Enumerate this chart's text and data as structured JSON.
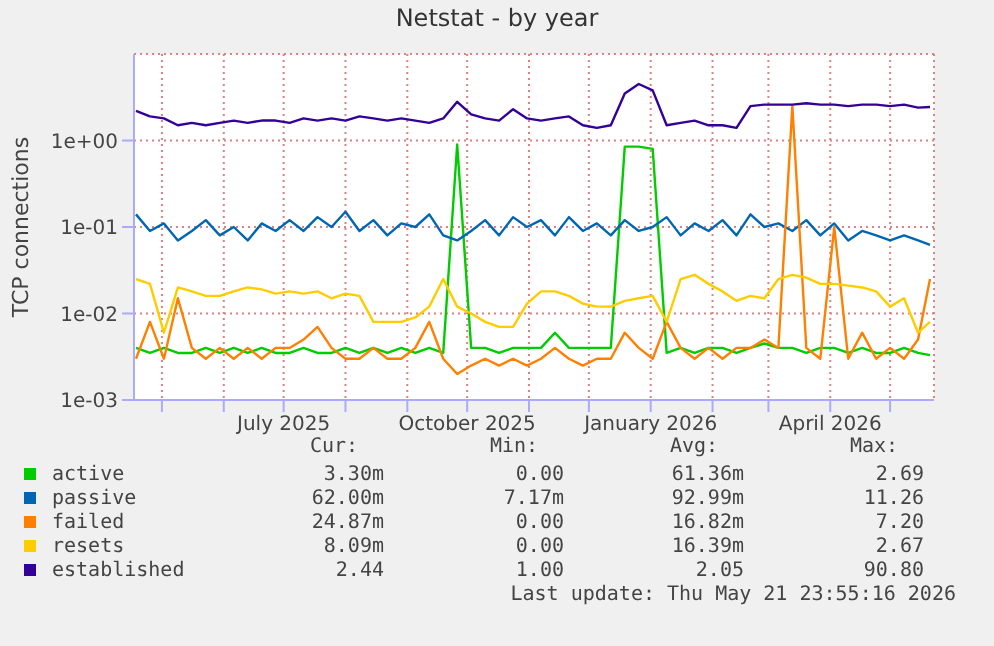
{
  "chart_data": {
    "type": "line",
    "title": "Netstat - by year",
    "ylabel": "TCP connections",
    "log": "y",
    "grid": true,
    "legend": "bottom",
    "marker": "none",
    "line_style": "solid",
    "x": [
      "2025-04-18",
      "2025-04-25",
      "2025-05-02",
      "2025-05-09",
      "2025-05-16",
      "2025-05-23",
      "2025-05-30",
      "2025-06-06",
      "2025-06-13",
      "2025-06-20",
      "2025-06-27",
      "2025-07-04",
      "2025-07-11",
      "2025-07-18",
      "2025-07-25",
      "2025-08-01",
      "2025-08-08",
      "2025-08-15",
      "2025-08-22",
      "2025-08-29",
      "2025-09-05",
      "2025-09-12",
      "2025-09-19",
      "2025-09-26",
      "2025-10-03",
      "2025-10-10",
      "2025-10-17",
      "2025-10-24",
      "2025-10-31",
      "2025-11-07",
      "2025-11-14",
      "2025-11-21",
      "2025-11-28",
      "2025-12-05",
      "2025-12-12",
      "2025-12-19",
      "2025-12-26",
      "2026-01-02",
      "2026-01-09",
      "2026-01-16",
      "2026-01-23",
      "2026-01-30",
      "2026-02-06",
      "2026-02-13",
      "2026-02-20",
      "2026-02-27",
      "2026-03-06",
      "2026-03-13",
      "2026-03-20",
      "2026-03-27",
      "2026-04-03",
      "2026-04-10",
      "2026-04-17",
      "2026-04-24",
      "2026-05-01",
      "2026-05-08",
      "2026-05-15",
      "2026-05-21"
    ],
    "xlim": [
      "2025-04-17",
      "2026-05-23"
    ],
    "xticks": [
      {
        "value": "2025-05-01",
        "label": null
      },
      {
        "value": "2025-06-01",
        "label": null
      },
      {
        "value": "2025-07-01",
        "label": "July 2025"
      },
      {
        "value": "2025-08-01",
        "label": null
      },
      {
        "value": "2025-09-01",
        "label": null
      },
      {
        "value": "2025-10-01",
        "label": "October 2025"
      },
      {
        "value": "2025-11-01",
        "label": null
      },
      {
        "value": "2025-12-01",
        "label": null
      },
      {
        "value": "2026-01-01",
        "label": "January 2026"
      },
      {
        "value": "2026-02-01",
        "label": null
      },
      {
        "value": "2026-03-01",
        "label": null
      },
      {
        "value": "2026-04-01",
        "label": "April 2026"
      },
      {
        "value": "2026-05-01",
        "label": null
      }
    ],
    "ylim": [
      0.001,
      10
    ],
    "yticks": [
      {
        "value": 0.001,
        "label": "1e-03"
      },
      {
        "value": 0.01,
        "label": "1e-02"
      },
      {
        "value": 0.1,
        "label": "1e-01"
      },
      {
        "value": 1,
        "label": "1e+00"
      }
    ],
    "series": [
      {
        "name": "active",
        "color": "#00cc00",
        "values": [
          0.004,
          0.0035,
          0.004,
          0.0035,
          0.0035,
          0.004,
          0.0035,
          0.004,
          0.0035,
          0.004,
          0.0035,
          0.0035,
          0.004,
          0.0035,
          0.0035,
          0.004,
          0.0035,
          0.004,
          0.0035,
          0.004,
          0.0035,
          0.004,
          0.0035,
          0.9,
          0.004,
          0.004,
          0.0035,
          0.004,
          0.004,
          0.004,
          0.006,
          0.004,
          0.004,
          0.004,
          0.004,
          0.85,
          0.85,
          0.8,
          0.0035,
          0.004,
          0.0035,
          0.004,
          0.004,
          0.0035,
          0.004,
          0.0045,
          0.004,
          0.004,
          0.0035,
          0.004,
          0.004,
          0.0035,
          0.004,
          0.0035,
          0.0035,
          0.004,
          0.0035,
          0.0033
        ]
      },
      {
        "name": "passive",
        "color": "#0066b3",
        "values": [
          0.14,
          0.09,
          0.11,
          0.07,
          0.09,
          0.12,
          0.08,
          0.1,
          0.07,
          0.11,
          0.09,
          0.12,
          0.09,
          0.13,
          0.1,
          0.15,
          0.09,
          0.12,
          0.08,
          0.11,
          0.1,
          0.14,
          0.08,
          0.07,
          0.09,
          0.12,
          0.08,
          0.13,
          0.1,
          0.12,
          0.08,
          0.13,
          0.09,
          0.11,
          0.08,
          0.12,
          0.09,
          0.1,
          0.13,
          0.08,
          0.11,
          0.09,
          0.12,
          0.08,
          0.14,
          0.1,
          0.11,
          0.09,
          0.12,
          0.08,
          0.11,
          0.07,
          0.09,
          0.08,
          0.07,
          0.08,
          0.07,
          0.062
        ]
      },
      {
        "name": "failed",
        "color": "#ff8000",
        "values": [
          0.003,
          0.008,
          0.003,
          0.015,
          0.004,
          0.003,
          0.004,
          0.003,
          0.004,
          0.003,
          0.004,
          0.004,
          0.005,
          0.007,
          0.004,
          0.003,
          0.003,
          0.004,
          0.003,
          0.003,
          0.004,
          0.008,
          0.003,
          0.002,
          0.0025,
          0.003,
          0.0025,
          0.003,
          0.0025,
          0.003,
          0.004,
          0.003,
          0.0025,
          0.003,
          0.003,
          0.006,
          0.004,
          0.003,
          0.008,
          0.004,
          0.003,
          0.004,
          0.003,
          0.004,
          0.004,
          0.005,
          0.004,
          2.5,
          0.004,
          0.003,
          0.1,
          0.003,
          0.006,
          0.003,
          0.004,
          0.003,
          0.005,
          0.025
        ]
      },
      {
        "name": "resets",
        "color": "#ffcc00",
        "values": [
          0.025,
          0.022,
          0.006,
          0.02,
          0.018,
          0.016,
          0.016,
          0.018,
          0.02,
          0.019,
          0.017,
          0.018,
          0.017,
          0.018,
          0.015,
          0.017,
          0.016,
          0.008,
          0.008,
          0.008,
          0.009,
          0.012,
          0.025,
          0.012,
          0.01,
          0.008,
          0.007,
          0.007,
          0.013,
          0.018,
          0.018,
          0.016,
          0.013,
          0.012,
          0.012,
          0.014,
          0.015,
          0.016,
          0.008,
          0.025,
          0.028,
          0.022,
          0.018,
          0.014,
          0.016,
          0.015,
          0.025,
          0.028,
          0.026,
          0.022,
          0.022,
          0.021,
          0.02,
          0.018,
          0.012,
          0.015,
          0.006,
          0.008
        ]
      },
      {
        "name": "established",
        "color": "#330099",
        "values": [
          2.2,
          1.9,
          1.8,
          1.5,
          1.6,
          1.5,
          1.6,
          1.7,
          1.6,
          1.7,
          1.7,
          1.6,
          1.8,
          1.7,
          1.8,
          1.7,
          1.9,
          1.8,
          1.7,
          1.8,
          1.7,
          1.6,
          1.8,
          2.8,
          2.0,
          1.8,
          1.7,
          2.3,
          1.8,
          1.7,
          1.8,
          1.9,
          1.5,
          1.4,
          1.5,
          3.5,
          4.5,
          3.8,
          1.5,
          1.6,
          1.7,
          1.5,
          1.5,
          1.4,
          2.5,
          2.6,
          2.6,
          2.6,
          2.7,
          2.6,
          2.6,
          2.5,
          2.6,
          2.6,
          2.5,
          2.6,
          2.4,
          2.44
        ]
      }
    ],
    "annotations": [
      "Cur:",
      "Min:",
      "Avg:",
      "Max:",
      "3.30m",
      "0.00",
      "61.36m",
      "2.69",
      "62.00m",
      "7.17m",
      "92.99m",
      "11.26",
      "24.87m",
      "0.00",
      "16.82m",
      "7.20",
      "8.09m",
      "0.00",
      "16.39m",
      "2.67",
      "2.44",
      "1.00",
      "2.05",
      "90.80",
      "Last update: Thu May 21 23:55:16 2026"
    ]
  }
}
